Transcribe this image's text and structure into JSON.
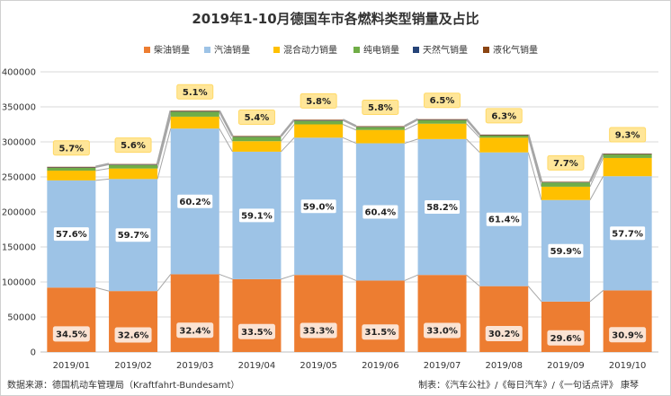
{
  "chart_data": {
    "type": "bar",
    "title": "2019年1-10月德国车市各燃料类型销量及占比",
    "categories": [
      "2019/01",
      "2019/02",
      "2019/03",
      "2019/04",
      "2019/05",
      "2019/06",
      "2019/07",
      "2019/08",
      "2019/09",
      "2019/10"
    ],
    "ylim": [
      0,
      400000
    ],
    "yticks": [
      0,
      50000,
      100000,
      150000,
      200000,
      250000,
      300000,
      350000,
      400000
    ],
    "grid": true,
    "legend_position": "top",
    "series": [
      {
        "name": "柴油销量",
        "color": "#ED7D31",
        "values": [
          92000,
          87000,
          111000,
          104000,
          110000,
          102000,
          110000,
          94000,
          72000,
          88000
        ]
      },
      {
        "name": "汽油销量",
        "color": "#9DC3E6",
        "values": [
          153000,
          160000,
          208000,
          182000,
          196000,
          196000,
          194000,
          191000,
          145000,
          163000
        ]
      },
      {
        "name": "混合动力销量",
        "color": "#FFC000",
        "values": [
          14000,
          15000,
          17000,
          15000,
          19000,
          19000,
          22000,
          21000,
          19000,
          26000
        ]
      },
      {
        "name": "纯电销量",
        "color": "#70AD47",
        "values": [
          4000,
          5000,
          7000,
          6000,
          5000,
          4000,
          5000,
          3000,
          6000,
          5000
        ]
      },
      {
        "name": "天然气销量",
        "color": "#264478",
        "values": [
          500,
          600,
          500,
          500,
          600,
          500,
          500,
          500,
          400,
          500
        ]
      },
      {
        "name": "液化气销量",
        "color": "#8B4513",
        "values": [
          900,
          800,
          1000,
          900,
          1000,
          900,
          900,
          900,
          700,
          800
        ]
      }
    ],
    "share_labels": {
      "diesel": [
        "34.5%",
        "32.6%",
        "32.4%",
        "33.5%",
        "33.3%",
        "31.5%",
        "33.0%",
        "30.2%",
        "29.6%",
        "30.9%"
      ],
      "petrol": [
        "57.6%",
        "59.7%",
        "60.2%",
        "59.1%",
        "59.0%",
        "60.4%",
        "58.2%",
        "61.4%",
        "59.9%",
        "57.7%"
      ],
      "alternative": [
        "5.7%",
        "5.6%",
        "5.1%",
        "5.4%",
        "5.8%",
        "5.8%",
        "6.5%",
        "6.3%",
        "7.7%",
        "9.3%"
      ]
    }
  },
  "footer": {
    "source": "数据来源：德国机动车管理局（Kraftfahrt-Bundesamt）",
    "credit": "制表：《汽车公社》/《每日汽车》/《一句话点评》 康琴"
  }
}
